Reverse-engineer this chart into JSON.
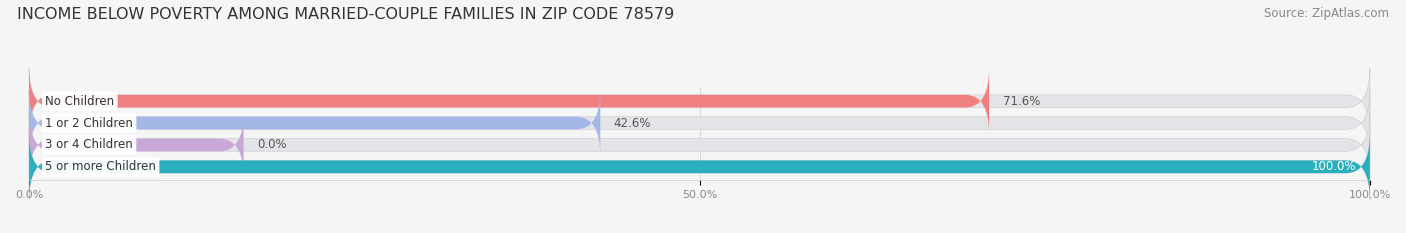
{
  "title": "INCOME BELOW POVERTY AMONG MARRIED-COUPLE FAMILIES IN ZIP CODE 78579",
  "source": "Source: ZipAtlas.com",
  "categories": [
    "No Children",
    "1 or 2 Children",
    "3 or 4 Children",
    "5 or more Children"
  ],
  "values": [
    71.6,
    42.6,
    0.0,
    100.0
  ],
  "bar_colors": [
    "#f08080",
    "#a4b8e8",
    "#c8a8d8",
    "#2ab0bc"
  ],
  "background_color": "#f5f5f5",
  "bar_bg_color": "#e4e4e8",
  "xlim": [
    0,
    100
  ],
  "xtick_labels": [
    "0.0%",
    "50.0%",
    "100.0%"
  ],
  "title_fontsize": 11.5,
  "source_fontsize": 8.5,
  "bar_height": 0.58,
  "label_fontsize": 8.5,
  "cat_label_fontsize": 8.5
}
